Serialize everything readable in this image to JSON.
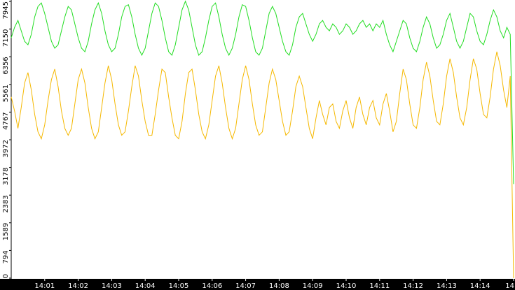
{
  "chart_data": {
    "type": "line",
    "xlim": [
      0,
      150
    ],
    "xticks": [
      {
        "value": 10,
        "label": "14:01"
      },
      {
        "value": 20,
        "label": "14:02"
      },
      {
        "value": 30,
        "label": "14:03"
      },
      {
        "value": 40,
        "label": "14:04"
      },
      {
        "value": 50,
        "label": "14:05"
      },
      {
        "value": 60,
        "label": "14:06"
      },
      {
        "value": 70,
        "label": "14:07"
      },
      {
        "value": 80,
        "label": "14:08"
      },
      {
        "value": 90,
        "label": "14:09"
      },
      {
        "value": 100,
        "label": "14:10"
      },
      {
        "value": 110,
        "label": "14:11"
      },
      {
        "value": 120,
        "label": "14:12"
      },
      {
        "value": 130,
        "label": "14:13"
      },
      {
        "value": 140,
        "label": "14:14"
      },
      {
        "value": 150,
        "label": "14"
      }
    ],
    "ylim": [
      0,
      7945
    ],
    "yticks": [
      0,
      794,
      1589,
      2383,
      3178,
      3972,
      4767,
      5561,
      6356,
      7150,
      7945
    ],
    "series": [
      {
        "color": "#22dd22",
        "values": [
          6900,
          7200,
          7400,
          7100,
          6800,
          6700,
          7000,
          7500,
          7800,
          7900,
          7600,
          7200,
          6800,
          6600,
          6700,
          7100,
          7500,
          7800,
          7700,
          7300,
          6900,
          6600,
          6500,
          6800,
          7300,
          7700,
          7900,
          7600,
          7100,
          6700,
          6500,
          6600,
          7000,
          7500,
          7800,
          7850,
          7500,
          7000,
          6600,
          6400,
          6600,
          7100,
          7600,
          7900,
          7800,
          7400,
          6900,
          6500,
          6400,
          6700,
          7200,
          7700,
          7950,
          7700,
          7200,
          6700,
          6400,
          6500,
          6900,
          7400,
          7800,
          7900,
          7500,
          7000,
          6600,
          6400,
          6600,
          7000,
          7500,
          7850,
          7800,
          7400,
          6900,
          6500,
          6400,
          6600,
          7100,
          7600,
          7800,
          7600,
          7200,
          6800,
          6500,
          6400,
          6700,
          7200,
          7500,
          7600,
          7300,
          7000,
          6800,
          7000,
          7300,
          7400,
          7200,
          7100,
          7300,
          7200,
          7000,
          7100,
          7300,
          7200,
          7000,
          7100,
          7300,
          7400,
          7200,
          7300,
          7100,
          7300,
          7200,
          7400,
          7000,
          6700,
          6500,
          6800,
          7100,
          7400,
          7300,
          6900,
          6600,
          6500,
          6800,
          7200,
          7500,
          7300,
          6900,
          6600,
          6700,
          7000,
          7400,
          7600,
          7200,
          6800,
          6600,
          6800,
          7200,
          7600,
          7500,
          7100,
          6800,
          6700,
          7000,
          7400,
          7700,
          7500,
          7100,
          6900,
          7200,
          7000,
          2700
        ]
      },
      {
        "color": "#f5b800",
        "values": [
          5200,
          4800,
          4300,
          4900,
          5600,
          5900,
          5400,
          4700,
          4200,
          4000,
          4400,
          5100,
          5700,
          6000,
          5500,
          4800,
          4300,
          4100,
          4300,
          5000,
          5700,
          6000,
          5600,
          4900,
          4300,
          4000,
          4200,
          4900,
          5600,
          6100,
          5700,
          5000,
          4400,
          4100,
          4200,
          4800,
          5500,
          6100,
          5800,
          5100,
          4500,
          4100,
          4100,
          4700,
          5400,
          6000,
          5900,
          5200,
          4600,
          4100,
          4000,
          4500,
          5300,
          5900,
          6000,
          5400,
          4700,
          4200,
          4000,
          4400,
          5100,
          5800,
          6100,
          5600,
          4900,
          4300,
          4000,
          4300,
          5000,
          5700,
          6100,
          5700,
          5000,
          4400,
          4100,
          4200,
          4900,
          5600,
          6000,
          5700,
          5100,
          4500,
          4100,
          4200,
          4800,
          5500,
          5800,
          5500,
          4900,
          4300,
          4000,
          4600,
          5100,
          4700,
          4400,
          4900,
          5000,
          4500,
          4300,
          4800,
          5100,
          4600,
          4300,
          4900,
          5200,
          4700,
          4400,
          4900,
          5100,
          4600,
          4400,
          5000,
          5300,
          4800,
          4200,
          4500,
          5300,
          6000,
          5700,
          5000,
          4400,
          4300,
          4900,
          5700,
          6200,
          5800,
          5100,
          4500,
          4400,
          5000,
          5800,
          6300,
          5900,
          5200,
          4600,
          4400,
          4900,
          5700,
          6300,
          6000,
          5300,
          4700,
          4600,
          5200,
          6000,
          6500,
          6100,
          5400,
          4900,
          5800,
          0
        ]
      }
    ]
  }
}
